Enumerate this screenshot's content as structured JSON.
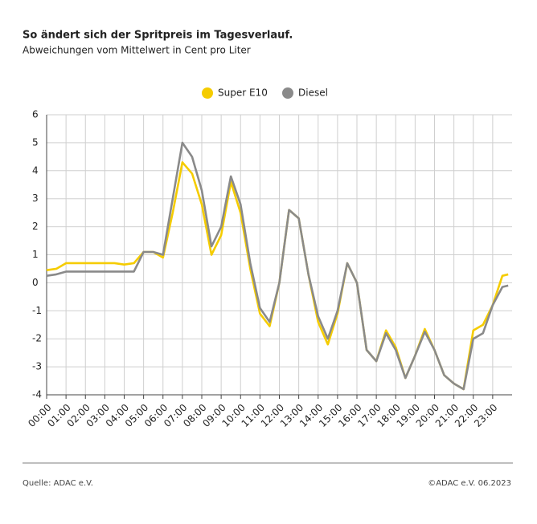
{
  "chart_data": {
    "type": "line",
    "title": "So ändert sich der Spritpreis im Tagesverlauf.",
    "subtitle": "Abweichungen vom Mittelwert in Cent pro Liter",
    "source": "Quelle: ADAC e.V.",
    "copyright": "©ADAC e.V.  06.2023",
    "x": [
      0,
      0.5,
      1,
      1.5,
      2,
      2.5,
      3,
      3.5,
      4,
      4.5,
      5,
      5.5,
      6,
      6.5,
      7,
      7.5,
      8,
      8.5,
      9,
      9.5,
      10,
      10.5,
      11,
      11.5,
      12,
      12.5,
      13,
      13.5,
      14,
      14.5,
      15,
      15.5,
      16,
      16.5,
      17,
      17.5,
      18,
      18.5,
      19,
      19.5,
      20,
      20.5,
      21,
      21.5,
      22,
      22.5,
      23,
      23.5,
      23.8
    ],
    "series": [
      {
        "name": "Super E10",
        "color": "#f5cc00",
        "values": [
          0.45,
          0.5,
          0.7,
          0.7,
          0.7,
          0.7,
          0.7,
          0.7,
          0.65,
          0.7,
          1.1,
          1.1,
          0.9,
          2.5,
          4.3,
          3.9,
          2.8,
          1.0,
          1.7,
          3.6,
          2.5,
          0.5,
          -1.1,
          -1.55,
          0.0,
          2.6,
          2.3,
          0.3,
          -1.4,
          -2.2,
          -1.1,
          0.7,
          0.0,
          -2.4,
          -2.8,
          -1.7,
          -2.3,
          -3.4,
          -2.6,
          -1.65,
          -2.4,
          -3.3,
          -3.6,
          -3.8,
          -1.7,
          -1.5,
          -0.8,
          0.25,
          0.3
        ]
      },
      {
        "name": "Diesel",
        "color": "#8a8a8a",
        "values": [
          0.25,
          0.3,
          0.4,
          0.4,
          0.4,
          0.4,
          0.4,
          0.4,
          0.4,
          0.4,
          1.1,
          1.1,
          1.0,
          3.0,
          5.0,
          4.5,
          3.3,
          1.3,
          2.0,
          3.8,
          2.8,
          0.7,
          -0.9,
          -1.4,
          0.0,
          2.6,
          2.3,
          0.3,
          -1.2,
          -2.0,
          -1.0,
          0.7,
          0.0,
          -2.4,
          -2.8,
          -1.8,
          -2.4,
          -3.4,
          -2.6,
          -1.75,
          -2.4,
          -3.3,
          -3.6,
          -3.8,
          -2.0,
          -1.8,
          -0.8,
          -0.15,
          -0.1
        ]
      }
    ],
    "xlim": [
      0,
      24
    ],
    "xticks": [
      {
        "value": 0,
        "label": "00:00"
      },
      {
        "value": 1,
        "label": "01:00"
      },
      {
        "value": 2,
        "label": "02:00"
      },
      {
        "value": 3,
        "label": "03:00"
      },
      {
        "value": 4,
        "label": "04:00"
      },
      {
        "value": 5,
        "label": "05:00"
      },
      {
        "value": 6,
        "label": "06:00"
      },
      {
        "value": 7,
        "label": "07:00"
      },
      {
        "value": 8,
        "label": "08:00"
      },
      {
        "value": 9,
        "label": "09:00"
      },
      {
        "value": 10,
        "label": "10:00"
      },
      {
        "value": 11,
        "label": "11:00"
      },
      {
        "value": 12,
        "label": "12:00"
      },
      {
        "value": 13,
        "label": "13:00"
      },
      {
        "value": 14,
        "label": "14:00"
      },
      {
        "value": 15,
        "label": "15:00"
      },
      {
        "value": 16,
        "label": "16:00"
      },
      {
        "value": 17,
        "label": "17:00"
      },
      {
        "value": 18,
        "label": "18:00"
      },
      {
        "value": 19,
        "label": "19:00"
      },
      {
        "value": 20,
        "label": "20:00"
      },
      {
        "value": 21,
        "label": "21:00"
      },
      {
        "value": 22,
        "label": "22:00"
      },
      {
        "value": 23,
        "label": "23:00"
      }
    ],
    "ylim": [
      -4,
      6
    ],
    "yticks": [
      -4,
      -3,
      -2,
      -1,
      0,
      1,
      2,
      3,
      4,
      5,
      6
    ],
    "grid": true,
    "legend": "top"
  }
}
